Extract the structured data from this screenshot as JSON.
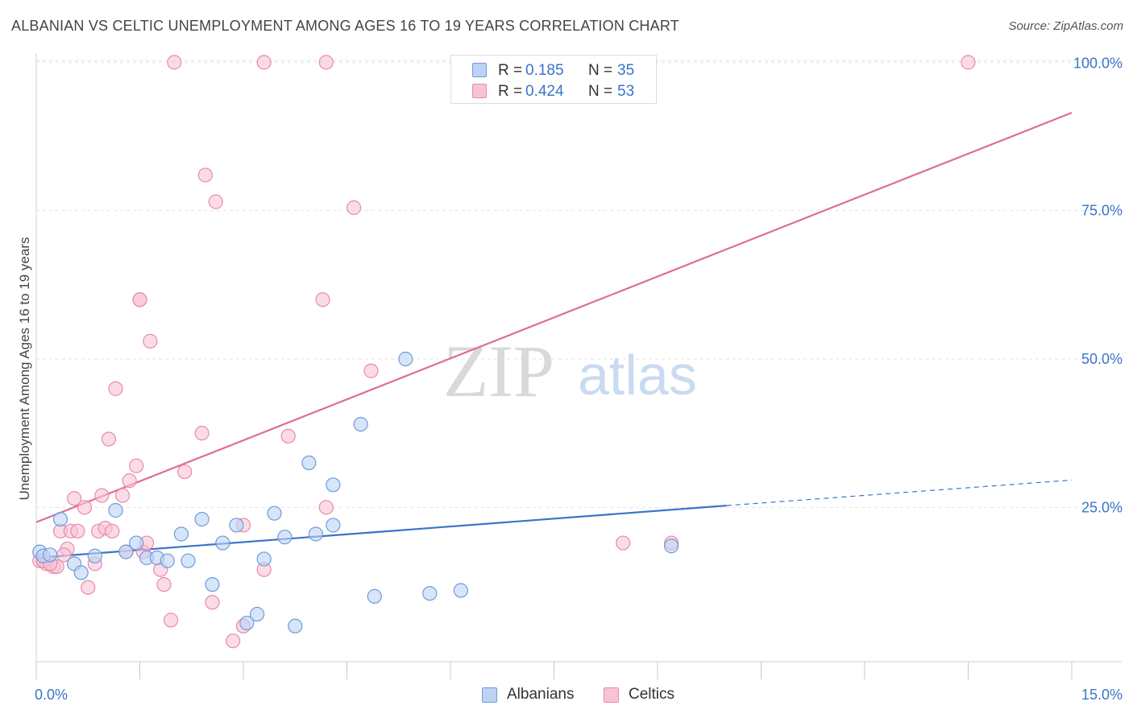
{
  "header": {
    "title": "ALBANIAN VS CELTIC UNEMPLOYMENT AMONG AGES 16 TO 19 YEARS CORRELATION CHART",
    "source": "Source: ZipAtlas.com"
  },
  "watermark": {
    "part1": "ZIP",
    "part2": "atlas"
  },
  "legend": {
    "albanians": {
      "r_label": "R =",
      "r_value": "0.185",
      "n_label": "N =",
      "n_value": "35"
    },
    "celtics": {
      "r_label": "R =",
      "r_value": "0.424",
      "n_label": "N =",
      "n_value": "53"
    }
  },
  "bottom_legend": {
    "albanians": "Albanians",
    "celtics": "Celtics"
  },
  "chart_data": {
    "type": "scatter",
    "title": "ALBANIAN VS CELTIC UNEMPLOYMENT AMONG AGES 16 TO 19 YEARS CORRELATION CHART",
    "xlabel": "",
    "ylabel": "Unemployment Among Ages 16 to 19 years",
    "xlim": [
      0,
      15
    ],
    "ylim": [
      -1,
      101
    ],
    "x_tick_labels": [
      "0.0%",
      "15.0%"
    ],
    "y_ticks": [
      25,
      50,
      75,
      100
    ],
    "y_tick_labels": [
      "25.0%",
      "50.0%",
      "75.0%",
      "100.0%"
    ],
    "colors": {
      "albanians": "#3a74c7",
      "celtics": "#e06c94",
      "albanians_fill": "#bcd3f5",
      "celtics_fill": "#f8c3d6"
    },
    "series": [
      {
        "name": "Albanians",
        "trend": {
          "x0": 0,
          "y0": 16.5,
          "x1": 10.0,
          "y1": 25.3,
          "x_dash_end": 15.0,
          "y_dash_end": 29.6
        },
        "points": [
          [
            0.05,
            17.5
          ],
          [
            0.1,
            16.8
          ],
          [
            0.2,
            17.0
          ],
          [
            0.35,
            23.0
          ],
          [
            0.55,
            15.5
          ],
          [
            0.85,
            16.8
          ],
          [
            1.15,
            24.5
          ],
          [
            1.3,
            17.5
          ],
          [
            1.45,
            19.0
          ],
          [
            1.6,
            16.5
          ],
          [
            1.75,
            16.5
          ],
          [
            1.9,
            16.0
          ],
          [
            2.1,
            20.5
          ],
          [
            2.2,
            16.0
          ],
          [
            2.4,
            23.0
          ],
          [
            2.55,
            12.0
          ],
          [
            2.7,
            19.0
          ],
          [
            2.9,
            22.0
          ],
          [
            3.05,
            5.5
          ],
          [
            3.2,
            7.0
          ],
          [
            3.3,
            16.3
          ],
          [
            3.45,
            24.0
          ],
          [
            3.6,
            20.0
          ],
          [
            3.75,
            5.0
          ],
          [
            3.95,
            32.5
          ],
          [
            4.05,
            20.5
          ],
          [
            4.3,
            22.0
          ],
          [
            4.3,
            28.8
          ],
          [
            4.7,
            39.0
          ],
          [
            4.9,
            10.0
          ],
          [
            5.35,
            50.0
          ],
          [
            5.7,
            10.5
          ],
          [
            6.15,
            11.0
          ],
          [
            9.2,
            18.5
          ],
          [
            0.65,
            14.0
          ]
        ]
      },
      {
        "name": "Celtics",
        "trend": {
          "x0": 0,
          "y0": 22.5,
          "x1": 15.0,
          "y1": 91.5
        },
        "points": [
          [
            0.05,
            16.0
          ],
          [
            0.15,
            15.5
          ],
          [
            0.25,
            15.0
          ],
          [
            0.35,
            21.0
          ],
          [
            0.45,
            18.0
          ],
          [
            0.5,
            21.0
          ],
          [
            0.55,
            26.5
          ],
          [
            0.6,
            21.0
          ],
          [
            0.7,
            25.0
          ],
          [
            0.75,
            11.5
          ],
          [
            0.85,
            15.5
          ],
          [
            0.9,
            21.0
          ],
          [
            0.95,
            27.0
          ],
          [
            1.0,
            21.5
          ],
          [
            1.05,
            36.5
          ],
          [
            1.1,
            21.0
          ],
          [
            1.15,
            45.0
          ],
          [
            1.25,
            27.0
          ],
          [
            1.3,
            17.5
          ],
          [
            1.35,
            29.5
          ],
          [
            1.45,
            32.0
          ],
          [
            1.5,
            60.0
          ],
          [
            1.55,
            17.5
          ],
          [
            1.6,
            19.0
          ],
          [
            1.65,
            53.0
          ],
          [
            1.8,
            14.5
          ],
          [
            1.85,
            12.0
          ],
          [
            1.95,
            6.0
          ],
          [
            2.0,
            100.0
          ],
          [
            2.15,
            31.0
          ],
          [
            2.4,
            37.5
          ],
          [
            2.45,
            81.0
          ],
          [
            2.55,
            9.0
          ],
          [
            2.6,
            76.5
          ],
          [
            2.85,
            2.5
          ],
          [
            3.0,
            22.0
          ],
          [
            3.3,
            14.5
          ],
          [
            3.3,
            100.0
          ],
          [
            3.65,
            37.0
          ],
          [
            4.15,
            60.0
          ],
          [
            4.2,
            100.0
          ],
          [
            4.2,
            25.0
          ],
          [
            4.6,
            75.5
          ],
          [
            4.85,
            48.0
          ],
          [
            8.5,
            19.0
          ],
          [
            9.2,
            19.0
          ],
          [
            13.5,
            100.0
          ],
          [
            0.3,
            15.0
          ],
          [
            0.4,
            17.0
          ],
          [
            3.0,
            5.0
          ],
          [
            1.5,
            60.0
          ],
          [
            0.1,
            16.0
          ],
          [
            0.2,
            15.5
          ]
        ]
      }
    ]
  }
}
